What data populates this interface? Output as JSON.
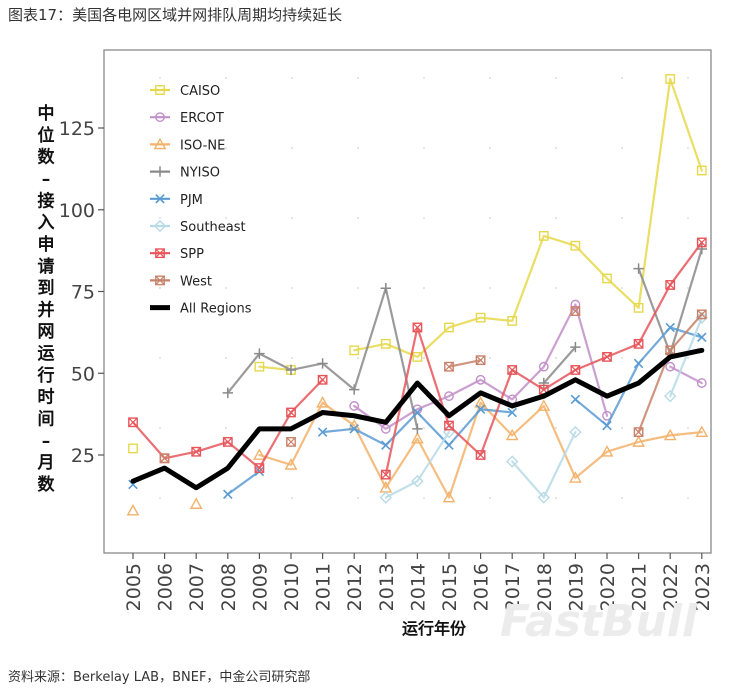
{
  "figure_title": "图表17：美国各电网区域并网排队周期均持续延长",
  "source": "资料来源：Berkelay LAB，BNEF，中金公司研究部",
  "watermark": "FastBull",
  "chart_data": {
    "type": "line",
    "xlabel": "运行年份",
    "ylabel": "中位数-接入申请到并网运行时间-月数",
    "x": [
      2005,
      2006,
      2007,
      2008,
      2009,
      2010,
      2011,
      2012,
      2013,
      2014,
      2015,
      2016,
      2017,
      2018,
      2019,
      2020,
      2021,
      2022,
      2023
    ],
    "ylim": [
      5,
      145
    ],
    "yticks": [
      25,
      50,
      75,
      100,
      125
    ],
    "legend_position": "top-left",
    "grid": false,
    "series": [
      {
        "name": "CAISO",
        "color": "#e6d84a",
        "marker": "square",
        "values": [
          27,
          null,
          null,
          null,
          52,
          51,
          null,
          57,
          59,
          55,
          64,
          67,
          66,
          92,
          89,
          79,
          70,
          140,
          112
        ]
      },
      {
        "name": "ERCOT",
        "color": "#c28fc8",
        "marker": "circle",
        "values": [
          null,
          null,
          null,
          null,
          null,
          null,
          null,
          40,
          33,
          39,
          43,
          48,
          42,
          52,
          71,
          37,
          null,
          52,
          47
        ]
      },
      {
        "name": "ISO-NE",
        "color": "#f3b26a",
        "marker": "triangle",
        "values": [
          8,
          null,
          10,
          null,
          25,
          22,
          41,
          34,
          15,
          30,
          12,
          41,
          31,
          40,
          18,
          26,
          29,
          31,
          32
        ]
      },
      {
        "name": "NYISO",
        "color": "#8a8a8a",
        "marker": "plus",
        "values": [
          null,
          null,
          null,
          44,
          56,
          51,
          53,
          45,
          76,
          33,
          null,
          null,
          null,
          47,
          58,
          null,
          82,
          56,
          88
        ]
      },
      {
        "name": "PJM",
        "color": "#5a9bd3",
        "marker": "x",
        "values": [
          16,
          null,
          null,
          13,
          20,
          null,
          32,
          33,
          28,
          38,
          28,
          39,
          38,
          null,
          42,
          34,
          53,
          64,
          61
        ]
      },
      {
        "name": "Southeast",
        "color": "#b7dbe6",
        "marker": "diamond",
        "values": [
          null,
          null,
          null,
          null,
          null,
          null,
          null,
          null,
          12,
          17,
          32,
          null,
          23,
          12,
          32,
          null,
          null,
          43,
          67
        ]
      },
      {
        "name": "SPP",
        "color": "#e7555a",
        "marker": "square-x",
        "values": [
          35,
          24,
          26,
          29,
          21,
          38,
          48,
          null,
          19,
          64,
          34,
          25,
          51,
          45,
          51,
          55,
          59,
          77,
          90
        ]
      },
      {
        "name": "West",
        "color": "#c8826a",
        "marker": "square-x",
        "values": [
          null,
          24,
          null,
          null,
          null,
          29,
          null,
          null,
          null,
          null,
          52,
          54,
          null,
          null,
          69,
          null,
          32,
          57,
          68
        ]
      },
      {
        "name": "All Regions",
        "color": "#000000",
        "marker": "none",
        "width": 5,
        "values": [
          17,
          21,
          15,
          21,
          33,
          33,
          38,
          37,
          35,
          47,
          37,
          44,
          40,
          43,
          48,
          43,
          47,
          55,
          57
        ]
      }
    ]
  }
}
